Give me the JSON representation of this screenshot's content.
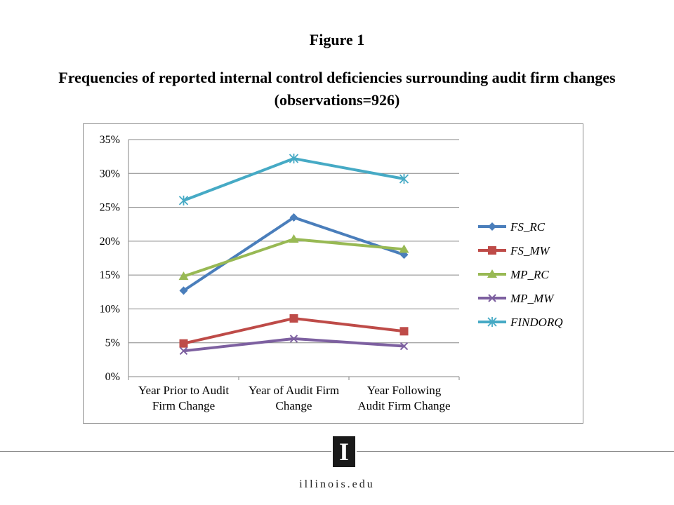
{
  "figure_label": "Figure 1",
  "figure_title_line1": "Frequencies of reported internal control deficiencies surrounding audit firm changes",
  "figure_title_line2": "(observations=926)",
  "logo": {
    "letter": "I",
    "name": "university-block-i-logo"
  },
  "site_text": "illinois.edu",
  "chart_data": {
    "type": "line",
    "categories": [
      [
        "Year Prior to Audit",
        "Firm Change"
      ],
      [
        "Year of Audit Firm",
        "Change"
      ],
      [
        "Year Following",
        "Audit Firm Change"
      ]
    ],
    "ylim": [
      0,
      35
    ],
    "ytick_step": 5,
    "y_unit": "%",
    "grid": true,
    "legend_position": "right",
    "series": [
      {
        "name": "FS_RC",
        "values": [
          12.7,
          23.5,
          18.0
        ],
        "color": "#4a7ebb",
        "marker": "diamond"
      },
      {
        "name": "FS_MW",
        "values": [
          4.9,
          8.6,
          6.7
        ],
        "color": "#be4b48",
        "marker": "square"
      },
      {
        "name": "MP_RC",
        "values": [
          14.8,
          20.3,
          18.8
        ],
        "color": "#98b954",
        "marker": "triangle"
      },
      {
        "name": "MP_MW",
        "values": [
          3.8,
          5.6,
          4.5
        ],
        "color": "#7d60a0",
        "marker": "x"
      },
      {
        "name": "FINDORQ",
        "values": [
          26.0,
          32.2,
          29.2
        ],
        "color": "#46aac5",
        "marker": "star"
      }
    ]
  }
}
